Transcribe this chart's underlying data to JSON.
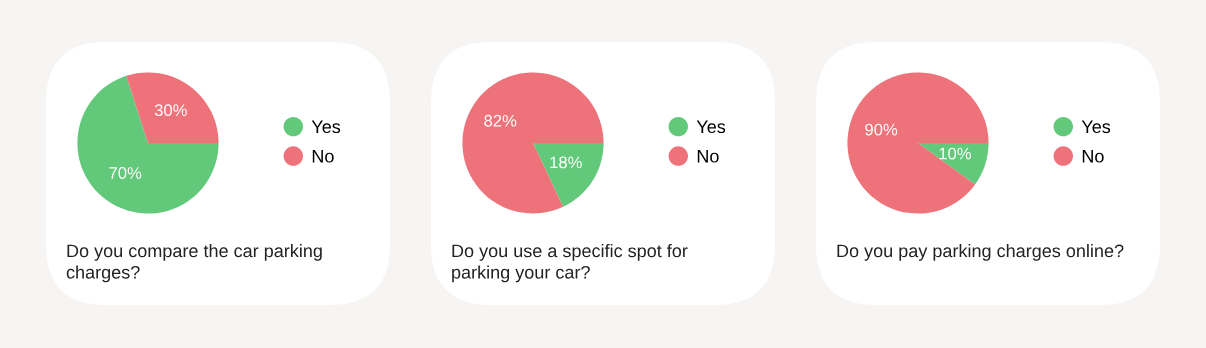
{
  "chart_data": [
    {
      "type": "pie",
      "title": "Do you compare the car parking charges?",
      "categories": [
        "Yes",
        "No"
      ],
      "values": [
        70,
        30
      ],
      "colors": [
        "#62c87a",
        "#ee727a"
      ],
      "value_labels": [
        "70%",
        "30%"
      ],
      "legend": "right"
    },
    {
      "type": "pie",
      "title": "Do you use a specific spot for parking your car?",
      "categories": [
        "Yes",
        "No"
      ],
      "values": [
        18,
        82
      ],
      "colors": [
        "#62c87a",
        "#ee727a"
      ],
      "value_labels": [
        "18%",
        "82%"
      ],
      "legend": "right"
    },
    {
      "type": "pie",
      "title": "Do you pay parking charges online?",
      "categories": [
        "Yes",
        "No"
      ],
      "values": [
        10,
        90
      ],
      "colors": [
        "#62c87a",
        "#ee727a"
      ],
      "value_labels": [
        "10%",
        "90%"
      ],
      "legend": "right"
    }
  ]
}
